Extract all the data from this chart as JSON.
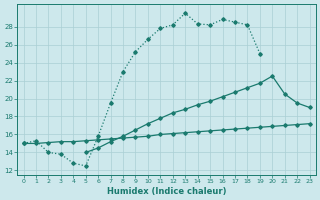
{
  "xlabel": "Humidex (Indice chaleur)",
  "x_ticks": [
    0,
    1,
    2,
    3,
    4,
    5,
    6,
    7,
    8,
    9,
    10,
    11,
    12,
    13,
    14,
    15,
    16,
    17,
    18,
    19,
    20,
    21,
    22,
    23
  ],
  "ylim": [
    11.5,
    30.5
  ],
  "xlim": [
    -0.5,
    23.5
  ],
  "y_ticks": [
    12,
    14,
    16,
    18,
    20,
    22,
    24,
    26,
    28
  ],
  "bg_color": "#cde8ec",
  "line_color": "#1a7a6e",
  "grid_color": "#aacfd4",
  "line1_x": [
    0,
    1,
    2,
    3,
    4,
    5,
    6,
    7,
    8,
    9,
    10,
    11,
    12,
    13,
    14,
    15,
    16,
    17,
    18,
    19
  ],
  "line1_y": [
    15.0,
    15.3,
    14.0,
    13.8,
    12.8,
    12.5,
    15.8,
    19.5,
    23.0,
    25.2,
    26.6,
    27.8,
    28.2,
    29.5,
    28.3,
    28.2,
    28.8,
    28.5,
    28.2,
    25.0
  ],
  "line2_x": [
    5,
    6,
    7,
    8,
    9,
    10,
    11,
    12,
    13,
    14,
    15,
    16,
    17,
    18,
    19,
    20,
    21,
    22,
    23
  ],
  "line2_y": [
    14.0,
    14.5,
    15.2,
    15.8,
    16.5,
    17.2,
    17.8,
    18.4,
    18.8,
    19.3,
    19.7,
    20.2,
    20.7,
    21.2,
    21.7,
    22.5,
    20.5,
    19.5,
    19.0
  ],
  "line3_x": [
    0,
    1,
    2,
    3,
    4,
    5,
    6,
    7,
    8,
    9,
    10,
    11,
    12,
    13,
    14,
    15,
    16,
    17,
    18,
    19,
    20,
    21,
    22,
    23
  ],
  "line3_y": [
    15.0,
    15.0,
    15.1,
    15.2,
    15.2,
    15.3,
    15.4,
    15.5,
    15.6,
    15.7,
    15.8,
    16.0,
    16.1,
    16.2,
    16.3,
    16.4,
    16.5,
    16.6,
    16.7,
    16.8,
    16.9,
    17.0,
    17.1,
    17.2
  ]
}
